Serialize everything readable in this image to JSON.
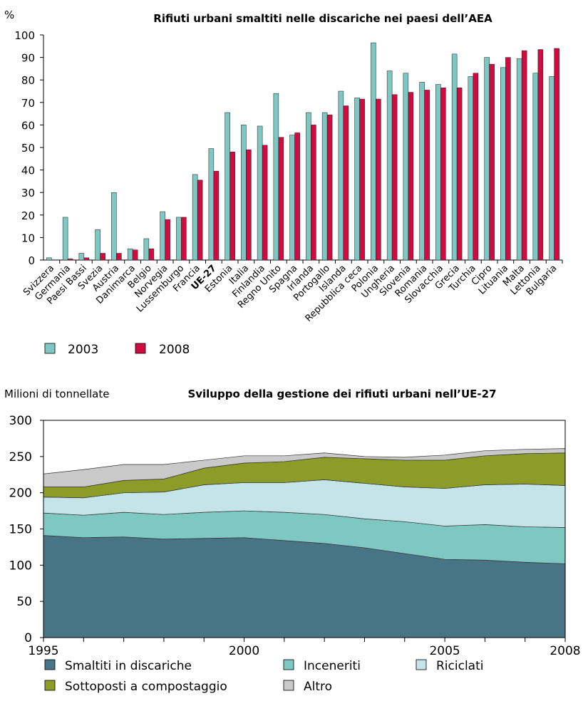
{
  "chart_data": [
    {
      "type": "bar",
      "title": "Rifiuti urbani smaltiti nelle discariche nei paesi dell’AEA",
      "ylabel": "%",
      "ylim": [
        0,
        100
      ],
      "yticks": [
        0,
        10,
        20,
        30,
        40,
        50,
        60,
        70,
        80,
        90,
        100
      ],
      "categories": [
        "Svizzera",
        "Germania",
        "Paesi Bassi",
        "Svezia",
        "Austria",
        "Danimarca",
        "Belgio",
        "Norvegia",
        "Lussemburgo",
        "Francia",
        "UE-27",
        "Estonia",
        "Italia",
        "Finlandia",
        "Regno Unito",
        "Spagna",
        "Irlanda",
        "Portogallo",
        "Islanda",
        "Repubblica ceca",
        "Polonia",
        "Ungheria",
        "Slovenia",
        "Romania",
        "Slovacchia",
        "Grecia",
        "Turchia",
        "Cipro",
        "Lituania",
        "Malta",
        "Lettonia",
        "Bulgaria"
      ],
      "bold_category": "UE-27",
      "series": [
        {
          "name": "2003",
          "color": "#7fc7c3",
          "values": [
            1,
            19,
            3,
            13.5,
            30,
            5,
            9.5,
            21.5,
            19,
            38,
            49.5,
            65.5,
            60,
            59.5,
            74,
            55.5,
            65.5,
            65.5,
            75,
            72,
            96.5,
            84,
            83,
            79,
            78,
            91.5,
            81.5,
            90,
            85.5,
            89.5,
            83,
            81.5
          ]
        },
        {
          "name": "2008",
          "color": "#d10a3f",
          "values": [
            0,
            0.5,
            1,
            3,
            3,
            4.5,
            5,
            18,
            19,
            35.5,
            39.5,
            48,
            49,
            51,
            54.5,
            56.5,
            60,
            64.5,
            68.5,
            71.5,
            71.5,
            73.5,
            74.5,
            75.5,
            76.5,
            76.5,
            83,
            87,
            90,
            93,
            93.5,
            94
          ]
        }
      ],
      "grid": false,
      "legend_position": "bottom-left"
    },
    {
      "type": "area",
      "stacked": true,
      "title": "Sviluppo della gestione dei rifiuti urbani nell’UE-27",
      "ylabel": "Milioni di tonnellate",
      "ylim": [
        0,
        300
      ],
      "yticks": [
        0,
        50,
        100,
        150,
        200,
        250,
        300
      ],
      "x": [
        1995,
        1996,
        1997,
        1998,
        1999,
        2000,
        2001,
        2002,
        2003,
        2004,
        2005,
        2006,
        2007,
        2008
      ],
      "xtick_labels": [
        "1995",
        "2000",
        "2005",
        "2008"
      ],
      "series": [
        {
          "name": "Smaltiti in discariche",
          "color": "#477586",
          "values": [
            141,
            138,
            139,
            136,
            137,
            138,
            134,
            130,
            124,
            116,
            108,
            107,
            104,
            102
          ]
        },
        {
          "name": "Inceneriti",
          "color": "#7fc7c3",
          "values": [
            31,
            31,
            34,
            34,
            36,
            37,
            39,
            40,
            40,
            44,
            46,
            49,
            49,
            50
          ]
        },
        {
          "name": "Riciclati",
          "color": "#c4e4ea",
          "values": [
            22,
            24,
            27,
            31,
            38,
            39,
            41,
            48,
            49,
            48,
            52,
            55,
            59,
            58
          ]
        },
        {
          "name": "Sottoposti a compostaggio",
          "color": "#8c9c29",
          "values": [
            14,
            15,
            17,
            18,
            23,
            27,
            29,
            31,
            34,
            37,
            39,
            40,
            42,
            45
          ]
        },
        {
          "name": "Altro",
          "color": "#c9c9c9",
          "values": [
            18,
            24,
            22,
            20,
            11,
            10,
            8,
            6,
            3,
            4,
            7,
            7,
            6,
            6
          ]
        }
      ],
      "grid": false,
      "legend_position": "bottom"
    }
  ]
}
